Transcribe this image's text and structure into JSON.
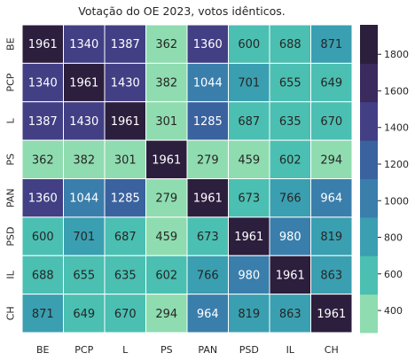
{
  "chart_data": {
    "type": "heatmap",
    "title": "Votação do OE 2023, votos idênticos.",
    "xlabel": "",
    "ylabel": "",
    "x_categories": [
      "BE",
      "PCP",
      "L",
      "PS",
      "PAN",
      "PSD",
      "IL",
      "CH"
    ],
    "y_categories": [
      "BE",
      "PCP",
      "L",
      "PS",
      "PAN",
      "PSD",
      "IL",
      "CH"
    ],
    "values": [
      [
        1961,
        1340,
        1387,
        362,
        1360,
        600,
        688,
        871
      ],
      [
        1340,
        1961,
        1430,
        382,
        1044,
        701,
        655,
        649
      ],
      [
        1387,
        1430,
        1961,
        301,
        1285,
        687,
        635,
        670
      ],
      [
        362,
        382,
        301,
        1961,
        279,
        459,
        602,
        294
      ],
      [
        1360,
        1044,
        1285,
        279,
        1961,
        673,
        766,
        964
      ],
      [
        600,
        701,
        687,
        459,
        673,
        1961,
        980,
        819
      ],
      [
        688,
        655,
        635,
        602,
        766,
        980,
        1961,
        863
      ],
      [
        871,
        649,
        670,
        294,
        964,
        819,
        863,
        1961
      ]
    ],
    "colorbar": {
      "ticks": [
        "400",
        "600",
        "800",
        "1000",
        "1200",
        "1400",
        "1600",
        "1800"
      ],
      "range": [
        279,
        1961
      ],
      "bins": 8,
      "colors": [
        "#8fdcb0",
        "#4bbfb2",
        "#3a9fb0",
        "#3a7eab",
        "#3a629e",
        "#423f85",
        "#3b2a5e",
        "#2c1e3d"
      ]
    },
    "annotation_dark_text": "#262626",
    "annotation_light_text": "#ffffff"
  }
}
